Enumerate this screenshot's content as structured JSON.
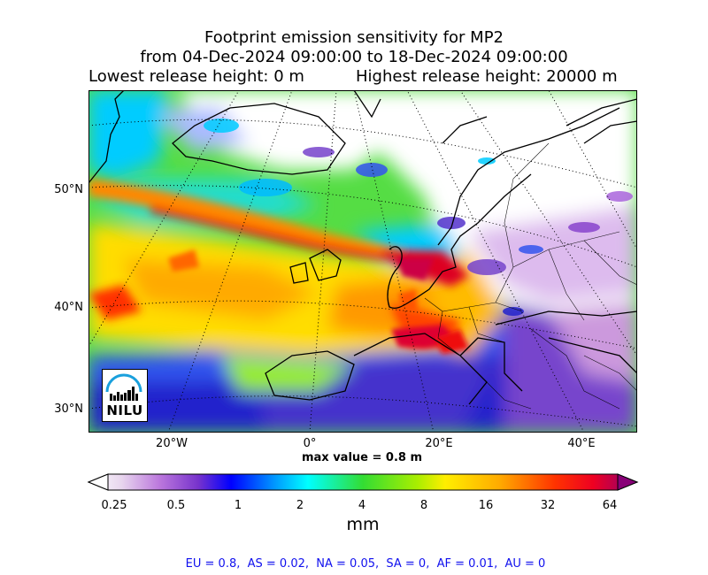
{
  "title": {
    "line1": "Footprint emission sensitivity for MP2",
    "line2": "from 04-Dec-2024 09:00:00 to 18-Dec-2024 09:00:00",
    "lowest": "Lowest release height: 0 m",
    "highest": "Highest release height: 20000 m"
  },
  "axes": {
    "lat_labels": [
      "50°N",
      "40°N",
      "30°N"
    ],
    "lon_labels": [
      "20°W",
      "0°",
      "20°E",
      "40°E"
    ]
  },
  "max_value": "max value = 0.8 m",
  "logo": {
    "text": "NILU",
    "color": "#1aa0dd"
  },
  "colorbar": {
    "unit": "mm",
    "ticks": [
      "0.25",
      "0.5",
      "1",
      "2",
      "4",
      "8",
      "16",
      "32",
      "64"
    ],
    "colors": [
      "#ffffff",
      "#cc99dd",
      "#7733cc",
      "#0000ff",
      "#00ffff",
      "#33dd33",
      "#ffee00",
      "#ff8800",
      "#ff0000",
      "#990066"
    ]
  },
  "stats": "EU = 0.8,  AS = 0.02,  NA = 0.05,  SA = 0,  AF = 0.01,  AU = 0"
}
